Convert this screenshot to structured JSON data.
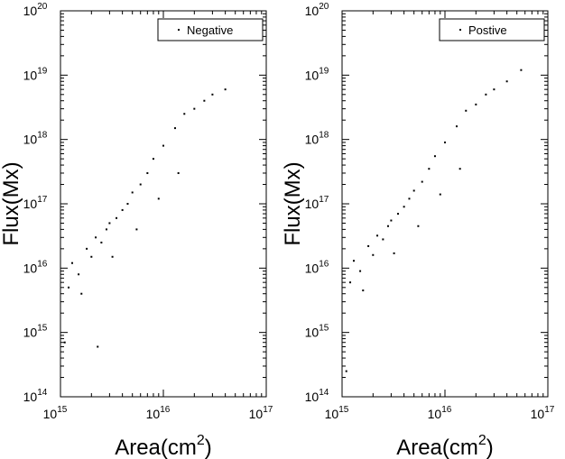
{
  "chart_data": [
    {
      "type": "scatter",
      "xlabel": "Area(cm",
      "xlabel_superscript": "2",
      "xlabel_suffix": ")",
      "ylabel": "Flux(Mx)",
      "xscale": "log",
      "yscale": "log",
      "xlim": [
        1000000000000000.0,
        1e+17
      ],
      "ylim": [
        100000000000000.0,
        1e+20
      ],
      "xticks": [
        {
          "base": "10",
          "exp": "15"
        },
        {
          "base": "10",
          "exp": "16"
        },
        {
          "base": "10",
          "exp": "17"
        }
      ],
      "yticks": [
        {
          "base": "10",
          "exp": "14"
        },
        {
          "base": "10",
          "exp": "15"
        },
        {
          "base": "10",
          "exp": "16"
        },
        {
          "base": "10",
          "exp": "17"
        },
        {
          "base": "10",
          "exp": "18"
        },
        {
          "base": "10",
          "exp": "19"
        },
        {
          "base": "10",
          "exp": "20"
        }
      ],
      "legend": {
        "label": "Negative",
        "placement": "top-right"
      },
      "color": "#000000",
      "series": [
        {
          "name": "Negative",
          "points": [
            [
              1200000000000000.0,
              5000000000000000.0
            ],
            [
              1300000000000000.0,
              1.2e+16
            ],
            [
              1500000000000000.0,
              8000000000000000.0
            ],
            [
              1800000000000000.0,
              2e+16
            ],
            [
              2000000000000000.0,
              1.5e+16
            ],
            [
              2200000000000000.0,
              3e+16
            ],
            [
              2500000000000000.0,
              2.5e+16
            ],
            [
              2800000000000000.0,
              4e+16
            ],
            [
              3000000000000000.0,
              5e+16
            ],
            [
              3500000000000000.0,
              6e+16
            ],
            [
              4000000000000000.0,
              8e+16
            ],
            [
              4500000000000000.0,
              1e+17
            ],
            [
              5000000000000000.0,
              1.5e+17
            ],
            [
              6000000000000000.0,
              2e+17
            ],
            [
              7000000000000000.0,
              3e+17
            ],
            [
              8000000000000000.0,
              5e+17
            ],
            [
              1e+16,
              8e+17
            ],
            [
              1.3e+16,
              1.5e+18
            ],
            [
              1.6e+16,
              2.5e+18
            ],
            [
              2e+16,
              3e+18
            ],
            [
              2.5e+16,
              4e+18
            ],
            [
              3e+16,
              5e+18
            ],
            [
              4e+16,
              6e+18
            ],
            [
              1100000000000000.0,
              700000000000000.0
            ],
            [
              2300000000000000.0,
              600000000000000.0
            ],
            [
              1600000000000000.0,
              4000000000000000.0
            ],
            [
              3200000000000000.0,
              1.5e+16
            ],
            [
              5500000000000000.0,
              4e+16
            ],
            [
              9000000000000000.0,
              1.2e+17
            ],
            [
              1.4e+16,
              3e+17
            ]
          ]
        }
      ]
    },
    {
      "type": "scatter",
      "xlabel": "Area(cm",
      "xlabel_superscript": "2",
      "xlabel_suffix": ")",
      "ylabel": "Flux(Mx)",
      "xscale": "log",
      "yscale": "log",
      "xlim": [
        1000000000000000.0,
        1e+17
      ],
      "ylim": [
        100000000000000.0,
        1e+20
      ],
      "xticks": [
        {
          "base": "10",
          "exp": "15"
        },
        {
          "base": "10",
          "exp": "16"
        },
        {
          "base": "10",
          "exp": "17"
        }
      ],
      "yticks": [
        {
          "base": "10",
          "exp": "14"
        },
        {
          "base": "10",
          "exp": "15"
        },
        {
          "base": "10",
          "exp": "16"
        },
        {
          "base": "10",
          "exp": "17"
        },
        {
          "base": "10",
          "exp": "18"
        },
        {
          "base": "10",
          "exp": "19"
        },
        {
          "base": "10",
          "exp": "20"
        }
      ],
      "legend": {
        "label": "Postive",
        "placement": "top-right"
      },
      "color": "#000000",
      "series": [
        {
          "name": "Postive",
          "points": [
            [
              1200000000000000.0,
              6000000000000000.0
            ],
            [
              1300000000000000.0,
              1.3e+16
            ],
            [
              1500000000000000.0,
              9000000000000000.0
            ],
            [
              1800000000000000.0,
              2.2e+16
            ],
            [
              2000000000000000.0,
              1.6e+16
            ],
            [
              2200000000000000.0,
              3.2e+16
            ],
            [
              2500000000000000.0,
              2.8e+16
            ],
            [
              2800000000000000.0,
              4.5e+16
            ],
            [
              3000000000000000.0,
              5.5e+16
            ],
            [
              3500000000000000.0,
              7e+16
            ],
            [
              4000000000000000.0,
              9e+16
            ],
            [
              4500000000000000.0,
              1.2e+17
            ],
            [
              5000000000000000.0,
              1.6e+17
            ],
            [
              6000000000000000.0,
              2.2e+17
            ],
            [
              7000000000000000.0,
              3.5e+17
            ],
            [
              8000000000000000.0,
              5.5e+17
            ],
            [
              1e+16,
              9e+17
            ],
            [
              1.3e+16,
              1.6e+18
            ],
            [
              1.6e+16,
              2.8e+18
            ],
            [
              2e+16,
              3.5e+18
            ],
            [
              2.5e+16,
              5e+18
            ],
            [
              3e+16,
              6e+18
            ],
            [
              4e+16,
              8e+18
            ],
            [
              5.5e+16,
              1.2e+19
            ],
            [
              1100000000000000.0,
              250000000000000.0
            ],
            [
              1600000000000000.0,
              4500000000000000.0
            ],
            [
              3200000000000000.0,
              1.7e+16
            ],
            [
              5500000000000000.0,
              4.5e+16
            ],
            [
              9000000000000000.0,
              1.4e+17
            ],
            [
              1.4e+16,
              3.5e+17
            ]
          ]
        }
      ]
    }
  ]
}
